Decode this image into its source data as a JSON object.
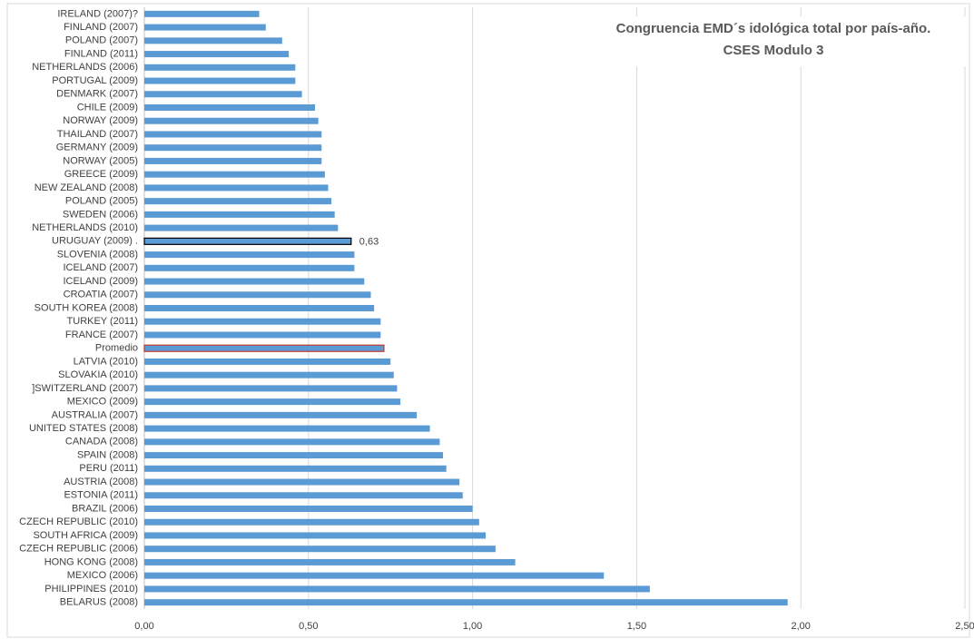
{
  "chart_data": {
    "type": "barh",
    "title": "Congruencia EMD´s idológica total  por país-año.",
    "subtitle": "CSES Modulo 3",
    "categories": [
      "IRELAND (2007)?",
      "FINLAND (2007)",
      "POLAND (2007)",
      "FINLAND (2011)",
      "NETHERLANDS (2006)",
      "PORTUGAL (2009)",
      "DENMARK (2007)",
      "CHILE (2009)",
      "NORWAY (2009)",
      "THAILAND (2007)",
      "GERMANY (2009)",
      "NORWAY (2005)",
      "GREECE (2009)",
      "NEW ZEALAND (2008)",
      "POLAND (2005)",
      "SWEDEN (2006)",
      "NETHERLANDS (2010)",
      "URUGUAY (2009) .",
      "SLOVENIA (2008)",
      "ICELAND (2007)",
      "ICELAND (2009)",
      "CROATIA (2007)",
      "SOUTH KOREA (2008)",
      "TURKEY (2011)",
      "FRANCE (2007)",
      "Promedio",
      "LATVIA (2010)",
      "SLOVAKIA (2010)",
      "]SWITZERLAND (2007)",
      "MEXICO (2009)",
      "AUSTRALIA (2007)",
      "UNITED STATES (2008)",
      "CANADA (2008)",
      "SPAIN (2008)",
      "PERU (2011)",
      "AUSTRIA (2008)",
      "ESTONIA (2011)",
      "BRAZIL (2006)",
      "CZECH REPUBLIC (2010)",
      "SOUTH AFRICA (2009)",
      "CZECH REPUBLIC (2006)",
      "HONG KONG (2008)",
      "MEXICO (2006)",
      "PHILIPPINES (2010)",
      "BELARUS (2008)"
    ],
    "values": [
      0.35,
      0.37,
      0.42,
      0.44,
      0.46,
      0.46,
      0.48,
      0.52,
      0.53,
      0.54,
      0.54,
      0.54,
      0.55,
      0.56,
      0.57,
      0.58,
      0.59,
      0.63,
      0.64,
      0.64,
      0.67,
      0.69,
      0.7,
      0.72,
      0.72,
      0.73,
      0.75,
      0.76,
      0.77,
      0.78,
      0.83,
      0.87,
      0.9,
      0.91,
      0.92,
      0.96,
      0.97,
      1.0,
      1.02,
      1.04,
      1.07,
      1.13,
      1.4,
      1.54,
      1.96
    ],
    "value_labels": [
      null,
      null,
      null,
      null,
      null,
      null,
      null,
      null,
      null,
      null,
      null,
      null,
      null,
      null,
      null,
      null,
      null,
      "0,63",
      null,
      null,
      null,
      null,
      null,
      null,
      null,
      null,
      null,
      null,
      null,
      null,
      null,
      null,
      null,
      null,
      null,
      null,
      null,
      null,
      null,
      null,
      null,
      null,
      null,
      null,
      null
    ],
    "color": "#5b9bd5",
    "bar_strokes": [
      null,
      null,
      null,
      null,
      null,
      null,
      null,
      null,
      null,
      null,
      null,
      null,
      null,
      null,
      null,
      null,
      null,
      "#000000",
      null,
      null,
      null,
      null,
      null,
      null,
      null,
      "#c0392b",
      null,
      null,
      null,
      null,
      null,
      null,
      null,
      null,
      null,
      null,
      null,
      null,
      null,
      null,
      null,
      null,
      null,
      null,
      null
    ],
    "xlim": [
      0,
      2.5
    ],
    "xticks": [
      {
        "value": 0,
        "label": "0,00"
      },
      {
        "value": 0.5,
        "label": "0,50"
      },
      {
        "value": 1,
        "label": "1,00"
      },
      {
        "value": 1.5,
        "label": "1,50"
      },
      {
        "value": 2,
        "label": "2,00"
      },
      {
        "value": 2.5,
        "label": "2,50"
      }
    ],
    "grid": true
  }
}
